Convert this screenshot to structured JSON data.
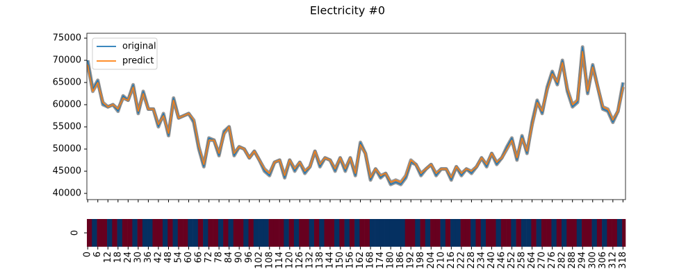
{
  "chart_data": {
    "type": "line",
    "title": "Electricity #0",
    "x": [
      0,
      3,
      6,
      9,
      12,
      15,
      18,
      21,
      24,
      27,
      30,
      33,
      36,
      39,
      42,
      45,
      48,
      51,
      54,
      57,
      60,
      63,
      66,
      69,
      72,
      75,
      78,
      81,
      84,
      87,
      90,
      93,
      96,
      99,
      102,
      105,
      108,
      111,
      114,
      117,
      120,
      123,
      126,
      129,
      132,
      135,
      138,
      141,
      144,
      147,
      150,
      153,
      156,
      159,
      162,
      165,
      168,
      171,
      174,
      177,
      180,
      183,
      186,
      189,
      192,
      195,
      198,
      201,
      204,
      207,
      210,
      213,
      216,
      219,
      222,
      225,
      228,
      231,
      234,
      237,
      240,
      243,
      246,
      249,
      252,
      255,
      258,
      261,
      264,
      267,
      270,
      273,
      276,
      279,
      282,
      285,
      288,
      291,
      294,
      297,
      300,
      303,
      306,
      309,
      312,
      315,
      318
    ],
    "series": [
      {
        "name": "original",
        "color": "#1f77b4",
        "values": [
          70000,
          63500,
          65500,
          60000,
          59500,
          60000,
          58500,
          62000,
          61000,
          64500,
          58000,
          63000,
          59000,
          59000,
          55000,
          58000,
          53000,
          61500,
          57000,
          57500,
          58000,
          56000,
          50000,
          46000,
          52500,
          52000,
          48500,
          54000,
          55000,
          48500,
          50500,
          50000,
          48000,
          49500,
          47500,
          45000,
          44000,
          47000,
          47500,
          43500,
          47500,
          45000,
          47000,
          44500,
          46000,
          49500,
          46000,
          48000,
          47500,
          45000,
          48000,
          45000,
          48000,
          44000,
          51500,
          49000,
          43000,
          45500,
          43500,
          44500,
          42000,
          42500,
          42000,
          43500,
          47000,
          46500,
          44000,
          45500,
          46500,
          44000,
          45500,
          45500,
          43000,
          46000,
          44000,
          45500,
          44500,
          46000,
          48000,
          46000,
          49000,
          46500,
          48000,
          50500,
          52500,
          47500,
          53000,
          49000,
          56000,
          61000,
          58000,
          64000,
          67500,
          64500,
          70000,
          63000,
          59500,
          60500,
          73000,
          62500,
          69000,
          64000,
          59000,
          58500,
          56000,
          58500,
          65000
        ]
      },
      {
        "name": "predict",
        "color": "#ff7f0e",
        "values": [
          69000,
          63000,
          65000,
          60500,
          59500,
          60000,
          59000,
          61500,
          61000,
          64000,
          58500,
          62500,
          59000,
          59000,
          55500,
          57500,
          53500,
          61000,
          57000,
          57500,
          58000,
          56500,
          50500,
          46500,
          52000,
          52000,
          49000,
          53500,
          55000,
          49000,
          50500,
          50000,
          48000,
          49500,
          47500,
          45500,
          44500,
          47000,
          47500,
          44000,
          47500,
          45500,
          47000,
          45000,
          46000,
          49500,
          46500,
          48000,
          47500,
          45500,
          48000,
          45500,
          48000,
          44500,
          51000,
          49000,
          43500,
          45500,
          44000,
          44500,
          42500,
          43000,
          42500,
          44000,
          47500,
          46500,
          44500,
          45500,
          46500,
          44500,
          45500,
          45500,
          43500,
          46000,
          44500,
          45500,
          45000,
          46000,
          48000,
          46500,
          49000,
          47000,
          48000,
          50000,
          52000,
          48000,
          52500,
          49500,
          55500,
          60500,
          58500,
          63500,
          67000,
          65000,
          69500,
          63500,
          60000,
          61000,
          72000,
          63000,
          68500,
          64000,
          59500,
          59000,
          56500,
          58500,
          64000
        ]
      }
    ],
    "xlim": [
      -0.5,
      319.5
    ],
    "ylim": [
      38600,
      76100
    ],
    "yticks": [
      40000,
      45000,
      50000,
      55000,
      60000,
      65000,
      70000,
      75000
    ],
    "xticks": [
      0,
      6,
      12,
      18,
      24,
      30,
      36,
      42,
      48,
      54,
      60,
      66,
      72,
      78,
      84,
      90,
      96,
      102,
      108,
      114,
      120,
      126,
      132,
      138,
      144,
      150,
      156,
      162,
      168,
      174,
      180,
      186,
      192,
      198,
      204,
      210,
      216,
      222,
      228,
      234,
      240,
      246,
      252,
      258,
      264,
      270,
      276,
      282,
      288,
      294,
      300,
      306,
      312,
      318
    ],
    "legend": "upper left",
    "heatmap": {
      "rows": [
        "0"
      ],
      "cmap": [
        "#67001f",
        "#053061"
      ],
      "values": [
        0,
        1,
        0,
        0,
        1,
        0,
        1,
        0,
        0,
        1,
        0,
        1,
        1,
        0,
        0,
        1,
        0,
        1,
        0,
        0,
        1,
        1,
        0,
        1,
        0,
        0,
        1,
        0,
        1,
        0,
        0,
        1,
        0,
        1,
        1,
        1,
        0,
        0,
        0,
        1,
        0,
        1,
        0,
        0,
        1,
        0,
        1,
        0,
        0,
        1,
        0,
        1,
        0,
        1,
        0,
        0,
        1,
        1,
        1,
        1,
        1,
        1,
        1,
        0,
        0,
        1,
        0,
        1,
        0,
        0,
        1,
        0,
        1,
        1,
        0,
        0,
        1,
        0,
        1,
        0,
        0,
        1,
        0,
        0,
        1,
        0,
        1,
        1,
        0,
        1,
        0,
        0,
        1,
        0,
        1,
        0,
        0,
        1,
        0,
        0,
        1,
        0,
        1,
        0,
        0,
        1,
        0
      ]
    }
  }
}
